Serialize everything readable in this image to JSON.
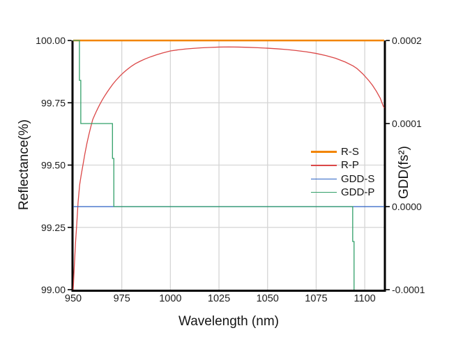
{
  "chart_data": {
    "type": "line",
    "title": "",
    "xlabel": "Wavelength (nm)",
    "ylabel_left": "Reflectance(%)",
    "ylabel_right": "GDD(fs²)",
    "x_range": [
      950,
      1110
    ],
    "y_left_range": [
      99.0,
      100.0
    ],
    "y_right_range": [
      -0.0001,
      0.0002
    ],
    "grid": true,
    "legend_position": "inside-right",
    "x_ticks": [
      {
        "v": 950,
        "label": "950"
      },
      {
        "v": 975,
        "label": "975"
      },
      {
        "v": 1000,
        "label": "1000"
      },
      {
        "v": 1025,
        "label": "1025"
      },
      {
        "v": 1050,
        "label": "1050"
      },
      {
        "v": 1075,
        "label": "1075"
      },
      {
        "v": 1100,
        "label": "1100"
      }
    ],
    "y_left_ticks": [
      {
        "v": 100.0,
        "label": "100.00"
      },
      {
        "v": 99.75,
        "label": "99.75"
      },
      {
        "v": 99.5,
        "label": "99.50"
      },
      {
        "v": 99.25,
        "label": "99.25"
      },
      {
        "v": 99.0,
        "label": "99.00"
      }
    ],
    "y_right_ticks": [
      {
        "v": 0.0002,
        "label": "0.0002"
      },
      {
        "v": 0.0001,
        "label": "0.0001"
      },
      {
        "v": 0.0,
        "label": "0.0000"
      },
      {
        "v": -0.0001,
        "label": "-0.0001"
      }
    ],
    "series": [
      {
        "name": "R-S",
        "axis": "left",
        "color": "#F28500",
        "width": 2.4,
        "points": [
          [
            950,
            100.0
          ],
          [
            1110,
            100.0
          ]
        ]
      },
      {
        "name": "R-P",
        "axis": "left",
        "color": "#DB4747",
        "width": 1.3,
        "points": [
          [
            950,
            99.0
          ],
          [
            950.6,
            99.1
          ],
          [
            951.2,
            99.19
          ],
          [
            951.8,
            99.26
          ],
          [
            952.5,
            99.35
          ],
          [
            953.3,
            99.42
          ],
          [
            954.1,
            99.46
          ],
          [
            955,
            99.5
          ],
          [
            956,
            99.545
          ],
          [
            957,
            99.585
          ],
          [
            958,
            99.62
          ],
          [
            959,
            99.652
          ],
          [
            960,
            99.682
          ],
          [
            961,
            99.7
          ],
          [
            962,
            99.717
          ],
          [
            963,
            99.733
          ],
          [
            964,
            99.748
          ],
          [
            965,
            99.762
          ],
          [
            966,
            99.775
          ],
          [
            967.5,
            99.793
          ],
          [
            969,
            99.81
          ],
          [
            970.5,
            99.826
          ],
          [
            972,
            99.84
          ],
          [
            974,
            99.857
          ],
          [
            976,
            99.872
          ],
          [
            978,
            99.885
          ],
          [
            980,
            99.897
          ],
          [
            982,
            99.907
          ],
          [
            984.5,
            99.917
          ],
          [
            987,
            99.926
          ],
          [
            990,
            99.935
          ],
          [
            993,
            99.943
          ],
          [
            996,
            99.95
          ],
          [
            1000,
            99.958
          ],
          [
            1004,
            99.9625
          ],
          [
            1008,
            99.966
          ],
          [
            1012,
            99.9685
          ],
          [
            1016,
            99.9705
          ],
          [
            1020,
            99.972
          ],
          [
            1025,
            99.9735
          ],
          [
            1030,
            99.974
          ],
          [
            1035,
            99.9735
          ],
          [
            1040,
            99.9725
          ],
          [
            1045,
            99.971
          ],
          [
            1050,
            99.969
          ],
          [
            1055,
            99.9665
          ],
          [
            1060,
            99.9635
          ],
          [
            1065,
            99.9595
          ],
          [
            1070,
            99.9545
          ],
          [
            1075,
            99.948
          ],
          [
            1080,
            99.9395
          ],
          [
            1085,
            99.9285
          ],
          [
            1090,
            99.9135
          ],
          [
            1094,
            99.898
          ],
          [
            1096,
            99.8875
          ],
          [
            1099,
            99.866
          ],
          [
            1102,
            99.84
          ],
          [
            1104,
            99.82
          ],
          [
            1106,
            99.796
          ],
          [
            1108,
            99.768
          ],
          [
            1109.5,
            99.737
          ],
          [
            1110,
            99.73
          ]
        ]
      },
      {
        "name": "GDD-S",
        "axis": "right",
        "color": "#2A62C4",
        "width": 1.3,
        "points": [
          [
            950,
            0.0
          ],
          [
            1110,
            0.0
          ]
        ]
      },
      {
        "name": "GDD-P",
        "axis": "right",
        "color": "#32A069",
        "width": 1.3,
        "points": [
          [
            950,
            0.0002
          ],
          [
            953.2,
            0.0002
          ],
          [
            953.2,
            0.000152
          ],
          [
            953.9,
            0.000152
          ],
          [
            953.9,
            0.0001
          ],
          [
            970.2,
            0.0001
          ],
          [
            970.2,
            5.8e-05
          ],
          [
            970.9,
            5.8e-05
          ],
          [
            970.9,
            0.0
          ],
          [
            1093.8,
            0.0
          ],
          [
            1093.8,
            -4.2e-05
          ],
          [
            1094.5,
            -4.2e-05
          ],
          [
            1094.5,
            -0.0001
          ]
        ]
      }
    ],
    "style": {
      "grid_color": "#D5D5D5",
      "axis_color": "#000000",
      "tick_label_color": "#1c1c1c"
    }
  }
}
